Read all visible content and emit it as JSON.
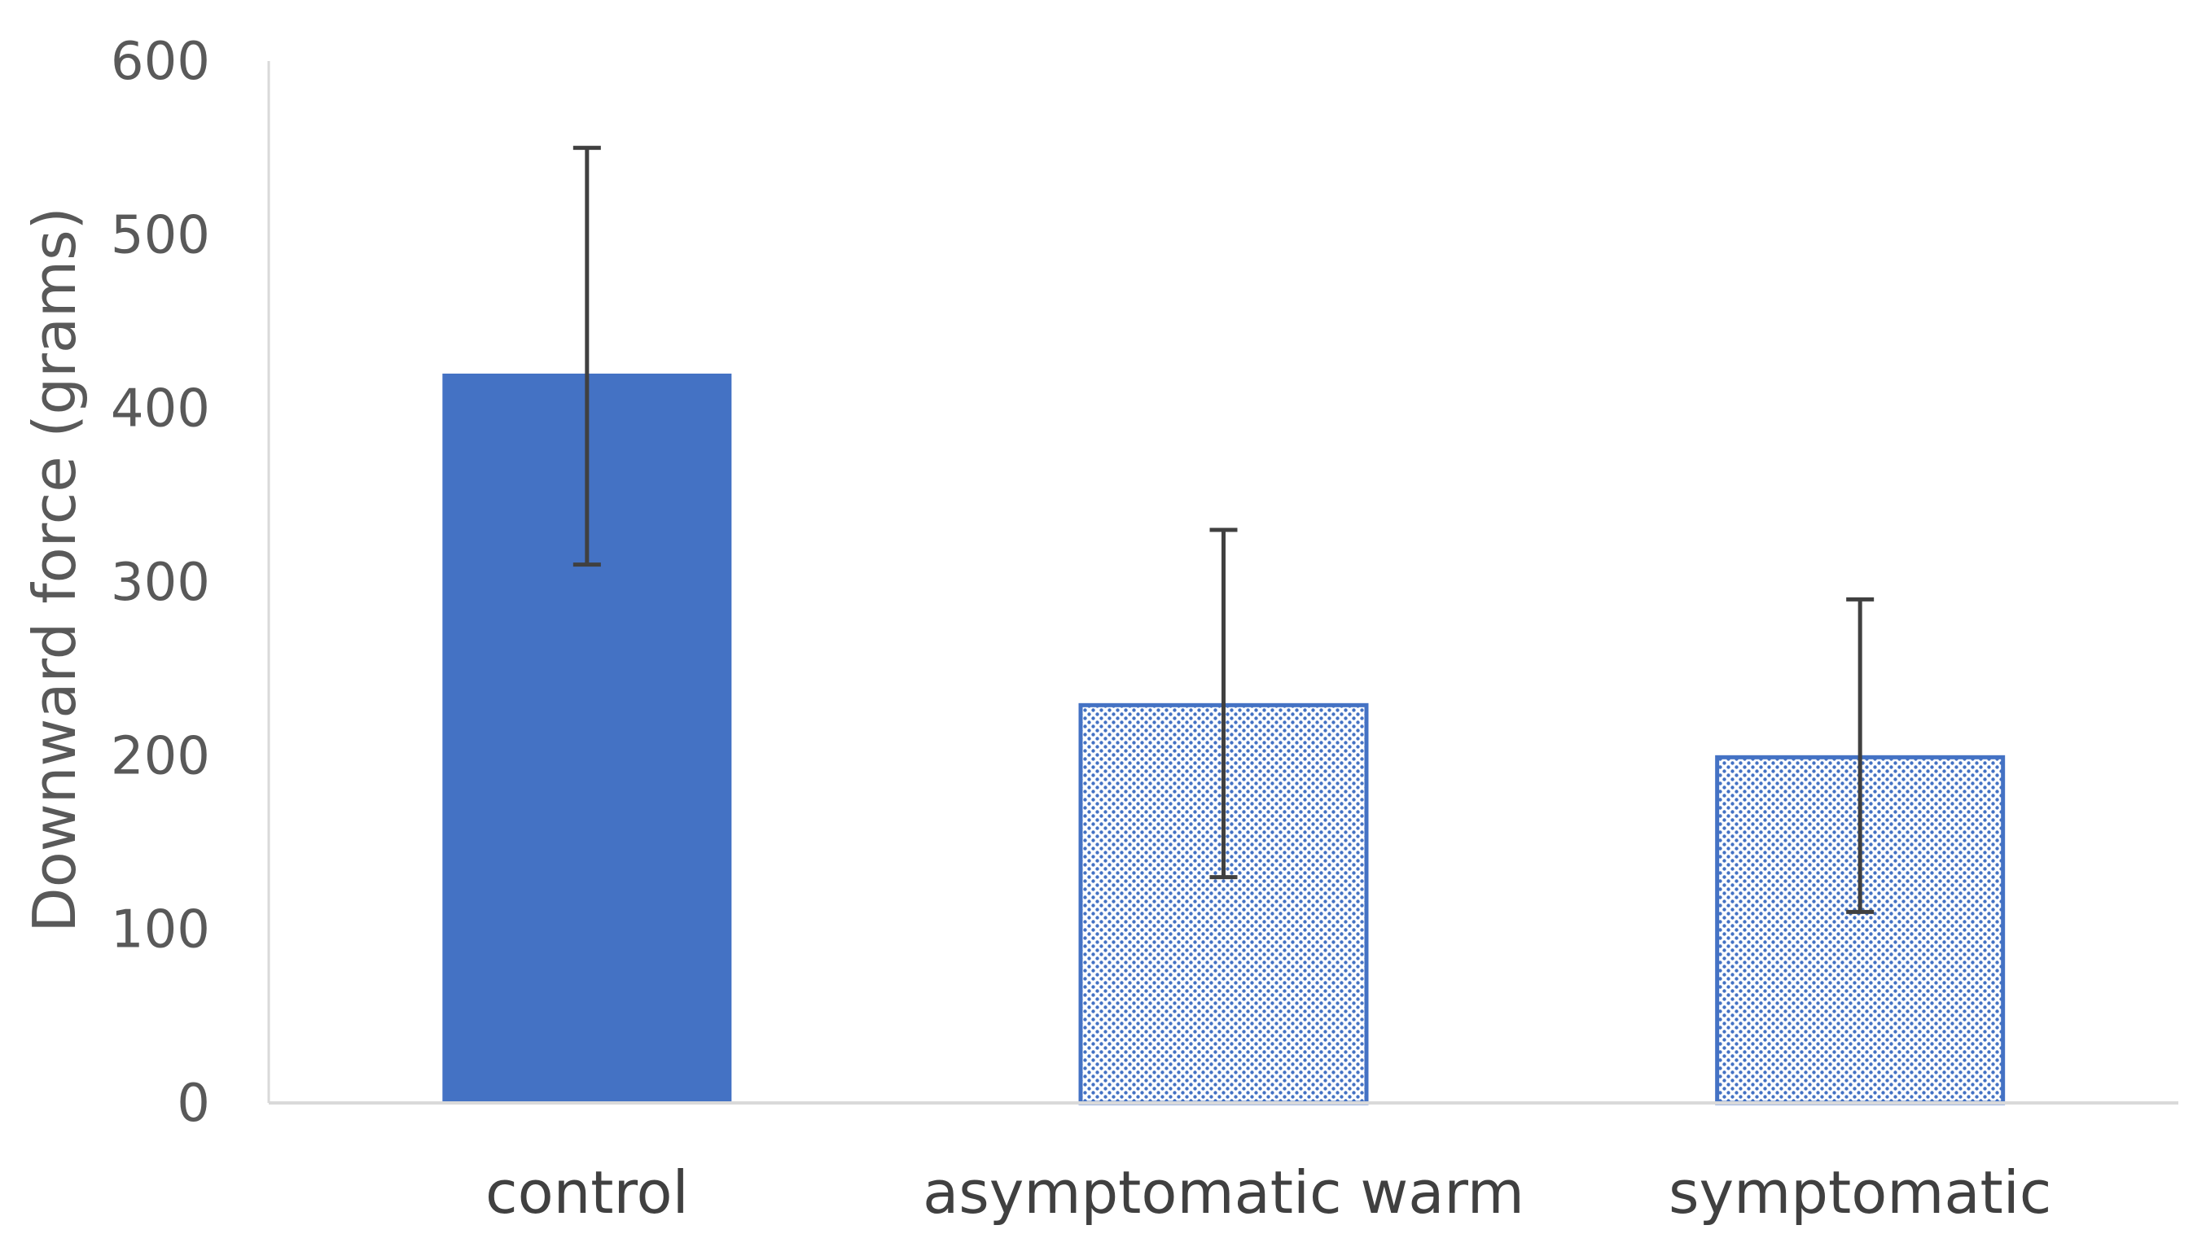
{
  "chart_data": {
    "type": "bar",
    "title": "",
    "xlabel": "",
    "ylabel": "Downward force (grams)",
    "ylim": [
      0,
      600
    ],
    "yticks": [
      0,
      100,
      200,
      300,
      400,
      500,
      600
    ],
    "ytick_labels": [
      "0",
      "100",
      "200",
      "300",
      "400",
      "500",
      "600"
    ],
    "grid": false,
    "categories": [
      "control",
      "asymptomatic warm",
      "symptomatic"
    ],
    "values": [
      420,
      230,
      200
    ],
    "error_bars": {
      "lower": [
        310,
        130,
        110
      ],
      "upper": [
        550,
        330,
        290
      ]
    },
    "bar_styles": [
      "solid",
      "dotted-pattern",
      "dotted-pattern"
    ],
    "colors": {
      "bar_fill": "#4472c4",
      "pattern_dot": "#4472c4",
      "pattern_bg": "#ffffff",
      "axis": "#d9d9d9",
      "error_bar": "#404040"
    }
  }
}
